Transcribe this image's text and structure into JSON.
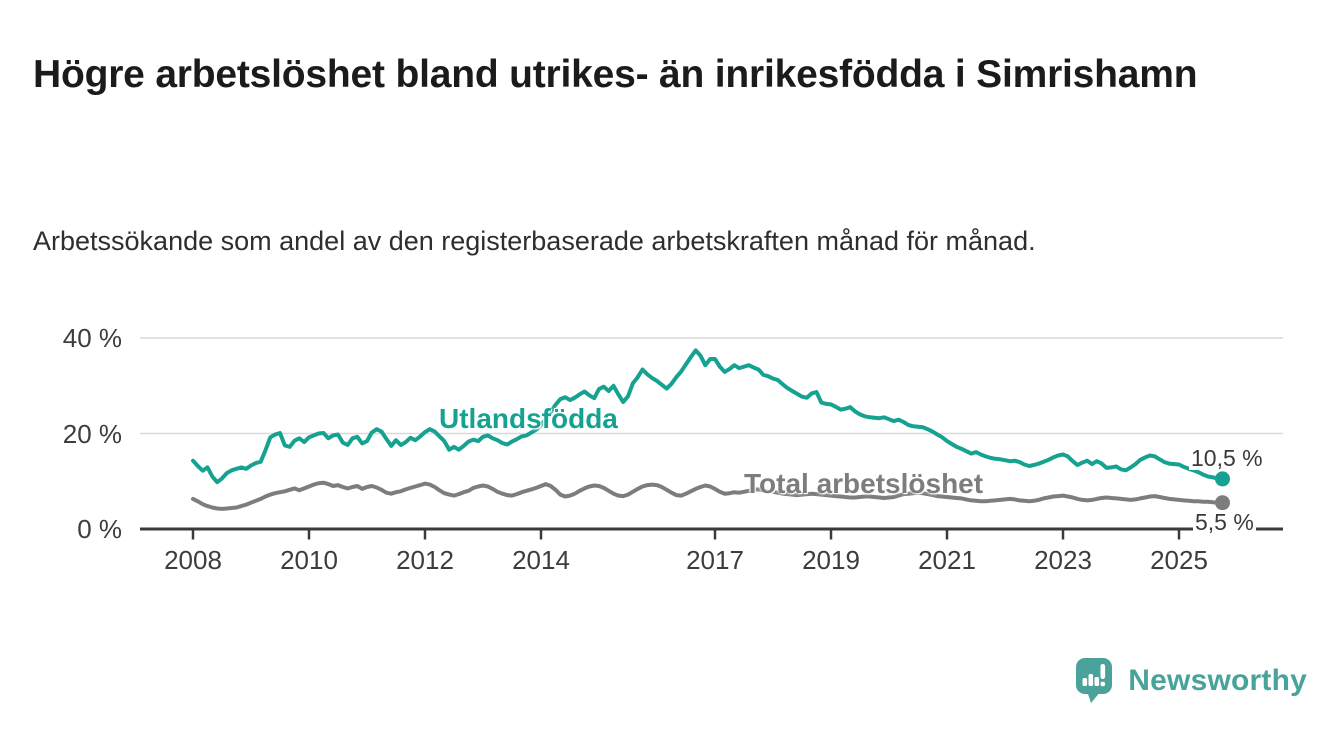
{
  "header": {
    "title": "Högre arbetslöshet bland utrikes- än inrikesfödda i Simrishamn",
    "subtitle": "Arbetssökande som andel av den registerbaserade arbetskraften månad för månad."
  },
  "chart_data": {
    "type": "line",
    "unit": "percent",
    "x_frequency": "monthly",
    "x_start_year": 2008,
    "x_end_label_position": "2025 (autumn)",
    "x_tick_labels": [
      "2008",
      "2010",
      "2012",
      "2014",
      "2017",
      "2019",
      "2021",
      "2023",
      "2025"
    ],
    "y_ticks": [
      {
        "value": 0,
        "label": "0 %"
      },
      {
        "value": 20,
        "label": "20 %"
      },
      {
        "value": 40,
        "label": "40 %"
      }
    ],
    "ylim": [
      0,
      44
    ],
    "grid": "horizontal",
    "legend_position": "inline-labels",
    "colors": {
      "grid": "#d9d9d9",
      "axis": "#3a3a3a",
      "tick_text": "#3d3d3d",
      "end_label_text": "#3a3a3a"
    },
    "series": [
      {
        "key": "utlandsfodda",
        "name": "Utlandsfödda",
        "color": "#16a290",
        "end_label": "10,5 %",
        "end_value": 10.5,
        "values": [
          14.3,
          13.2,
          12.2,
          12.9,
          11.0,
          9.8,
          10.6,
          11.7,
          12.3,
          12.6,
          12.9,
          12.6,
          13.3,
          13.8,
          14.1,
          16.5,
          19.2,
          19.8,
          20.1,
          17.5,
          17.2,
          18.5,
          19.0,
          18.2,
          19.2,
          19.6,
          20.0,
          20.1,
          19.0,
          19.6,
          19.8,
          18.1,
          17.6,
          19.0,
          19.3,
          17.9,
          18.4,
          20.2,
          20.9,
          20.4,
          18.9,
          17.4,
          18.6,
          17.6,
          18.2,
          19.1,
          18.6,
          19.4,
          20.3,
          20.9,
          20.4,
          19.4,
          18.4,
          16.6,
          17.2,
          16.6,
          17.4,
          18.3,
          18.7,
          18.4,
          19.3,
          19.6,
          19.0,
          18.6,
          18.0,
          17.7,
          18.3,
          18.8,
          19.4,
          19.6,
          20.2,
          20.8,
          21.8,
          23.0,
          24.5,
          26.0,
          27.2,
          27.6,
          27.0,
          27.5,
          28.2,
          28.8,
          28.0,
          27.4,
          29.3,
          29.8,
          28.9,
          30.0,
          28.2,
          26.6,
          27.8,
          30.5,
          31.8,
          33.4,
          32.4,
          31.6,
          31.0,
          30.2,
          29.4,
          30.4,
          31.8,
          33.0,
          34.5,
          36.0,
          37.4,
          36.3,
          34.3,
          35.6,
          35.6,
          34.0,
          32.9,
          33.5,
          34.3,
          33.7,
          34.0,
          34.3,
          33.8,
          33.4,
          32.3,
          32.0,
          31.5,
          31.2,
          30.3,
          29.5,
          28.9,
          28.3,
          27.7,
          27.5,
          28.4,
          28.7,
          26.5,
          26.2,
          26.1,
          25.6,
          25.0,
          25.2,
          25.5,
          24.6,
          24.0,
          23.6,
          23.4,
          23.3,
          23.2,
          23.4,
          23.0,
          22.6,
          22.9,
          22.4,
          21.8,
          21.5,
          21.4,
          21.3,
          20.9,
          20.4,
          19.8,
          19.2,
          18.4,
          17.8,
          17.2,
          16.8,
          16.3,
          15.8,
          16.1,
          15.6,
          15.2,
          14.9,
          14.7,
          14.6,
          14.4,
          14.2,
          14.3,
          14.0,
          13.5,
          13.2,
          13.4,
          13.7,
          14.1,
          14.5,
          15.0,
          15.4,
          15.6,
          15.2,
          14.2,
          13.4,
          13.9,
          14.3,
          13.6,
          14.2,
          13.7,
          12.8,
          12.9,
          13.1,
          12.5,
          12.3,
          12.9,
          13.6,
          14.5,
          15.0,
          15.4,
          15.2,
          14.6,
          14.0,
          13.7,
          13.6,
          13.5,
          13.0,
          12.6,
          12.3,
          11.9,
          11.4,
          11.0,
          10.8,
          10.6,
          10.5
        ]
      },
      {
        "key": "total",
        "name": "Total arbetslöshet",
        "color": "#7d7d7d",
        "end_label": "5,5 %",
        "end_value": 5.5,
        "values": [
          6.3,
          5.8,
          5.2,
          4.8,
          4.5,
          4.3,
          4.2,
          4.3,
          4.4,
          4.5,
          4.8,
          5.1,
          5.5,
          5.9,
          6.3,
          6.8,
          7.2,
          7.5,
          7.7,
          7.9,
          8.2,
          8.5,
          8.1,
          8.5,
          8.9,
          9.3,
          9.6,
          9.7,
          9.4,
          9.0,
          9.2,
          8.8,
          8.5,
          8.8,
          9.0,
          8.4,
          8.8,
          9.0,
          8.7,
          8.2,
          7.6,
          7.4,
          7.7,
          7.9,
          8.3,
          8.6,
          8.9,
          9.2,
          9.5,
          9.3,
          8.8,
          8.1,
          7.5,
          7.2,
          7.0,
          7.3,
          7.7,
          8.0,
          8.6,
          8.9,
          9.1,
          8.9,
          8.4,
          7.8,
          7.4,
          7.1,
          7.0,
          7.3,
          7.7,
          8.0,
          8.3,
          8.6,
          9.0,
          9.4,
          9.0,
          8.2,
          7.2,
          6.8,
          7.0,
          7.4,
          8.0,
          8.5,
          8.9,
          9.1,
          9.0,
          8.6,
          8.0,
          7.4,
          7.0,
          6.9,
          7.2,
          7.8,
          8.4,
          8.9,
          9.2,
          9.3,
          9.2,
          8.8,
          8.2,
          7.6,
          7.1,
          7.0,
          7.4,
          7.9,
          8.4,
          8.8,
          9.1,
          8.9,
          8.4,
          7.8,
          7.4,
          7.5,
          7.7,
          7.6,
          7.8,
          8.0,
          8.2,
          8.3,
          8.1,
          7.9,
          7.8,
          7.6,
          7.4,
          7.3,
          7.2,
          7.1,
          7.2,
          7.3,
          7.4,
          7.3,
          7.2,
          7.1,
          7.0,
          6.9,
          6.8,
          6.7,
          6.6,
          6.6,
          6.7,
          6.8,
          6.8,
          6.7,
          6.6,
          6.5,
          6.6,
          6.7,
          7.0,
          7.3,
          7.4,
          7.5,
          7.6,
          7.5,
          7.3,
          7.1,
          6.9,
          6.8,
          6.7,
          6.6,
          6.5,
          6.4,
          6.2,
          6.0,
          5.9,
          5.8,
          5.8,
          5.9,
          6.0,
          6.1,
          6.2,
          6.3,
          6.2,
          6.0,
          5.9,
          5.8,
          5.9,
          6.1,
          6.4,
          6.6,
          6.8,
          6.9,
          7.0,
          6.8,
          6.6,
          6.3,
          6.1,
          6.0,
          6.1,
          6.3,
          6.5,
          6.6,
          6.5,
          6.4,
          6.3,
          6.2,
          6.1,
          6.2,
          6.4,
          6.6,
          6.8,
          6.9,
          6.7,
          6.5,
          6.3,
          6.2,
          6.1,
          6.0,
          5.9,
          5.8,
          5.8,
          5.7,
          5.7,
          5.6,
          5.5,
          5.5
        ]
      }
    ]
  },
  "footer": {
    "brand": "Newsworthy",
    "brand_color": "#4aa39a"
  }
}
